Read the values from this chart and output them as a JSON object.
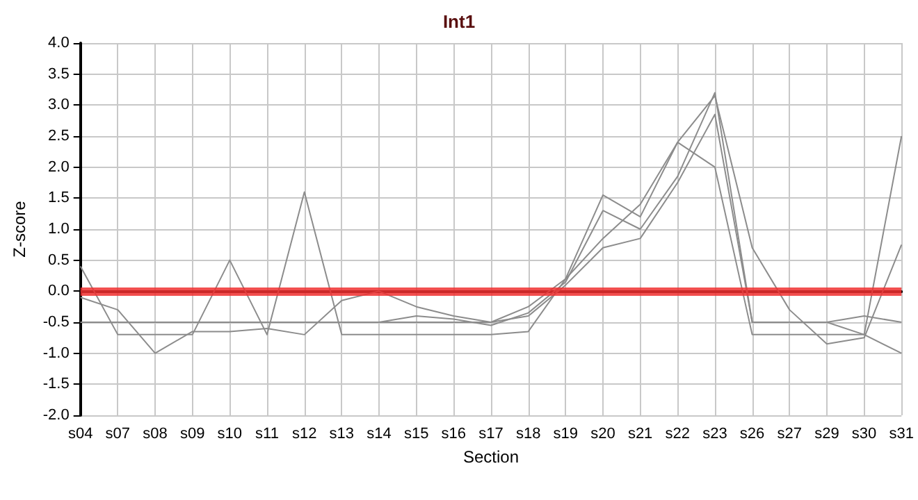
{
  "chart_data": {
    "type": "line",
    "title": "Int1",
    "xlabel": "Section",
    "ylabel": "Z-score",
    "categories": [
      "s04",
      "s07",
      "s08",
      "s09",
      "s10",
      "s11",
      "s12",
      "s13",
      "s14",
      "s15",
      "s16",
      "s17",
      "s18",
      "s19",
      "s20",
      "s21",
      "s22",
      "s23",
      "s26",
      "s27",
      "s29",
      "s30",
      "s31"
    ],
    "series": [
      {
        "color": "#8c8c8c",
        "values": [
          0.4,
          -0.7,
          -0.7,
          -0.7,
          0.5,
          -0.7,
          1.6,
          -0.7,
          -0.7,
          -0.7,
          -0.7,
          -0.7,
          -0.65,
          0.2,
          1.55,
          1.2,
          2.4,
          2.0,
          -0.7,
          -0.7,
          -0.7,
          -0.7,
          2.5
        ]
      },
      {
        "color": "#8c8c8c",
        "values": [
          -0.5,
          -0.5,
          -0.5,
          -0.5,
          -0.5,
          -0.5,
          -0.5,
          -0.5,
          -0.5,
          -0.5,
          -0.5,
          -0.5,
          -0.4,
          0.1,
          0.7,
          0.85,
          1.75,
          2.85,
          -0.5,
          -0.5,
          -0.5,
          -0.4,
          -0.5
        ]
      },
      {
        "color": "#8c8c8c",
        "values": [
          -0.1,
          -0.3,
          -1.0,
          -0.65,
          -0.65,
          -0.6,
          -0.7,
          -0.15,
          0.0,
          -0.25,
          -0.4,
          -0.5,
          -0.25,
          0.2,
          0.85,
          1.4,
          2.4,
          3.15,
          0.7,
          -0.3,
          -0.85,
          -0.75,
          0.75
        ]
      },
      {
        "color": "#8c8c8c",
        "values": [
          -0.5,
          -0.5,
          -0.5,
          -0.5,
          -0.5,
          -0.5,
          -0.5,
          -0.5,
          -0.5,
          -0.4,
          -0.45,
          -0.55,
          -0.35,
          0.15,
          1.3,
          1.0,
          1.85,
          3.2,
          -0.5,
          -0.5,
          -0.5,
          -0.7,
          -1.0
        ]
      }
    ],
    "ylim": [
      -2,
      4
    ],
    "yticks": [
      {
        "value": -2,
        "label": "-2.0"
      },
      {
        "value": -1.5,
        "label": "-1.5"
      },
      {
        "value": -1,
        "label": "-1.0"
      },
      {
        "value": -0.5,
        "label": "-0.5"
      },
      {
        "value": 0,
        "label": "0.0"
      },
      {
        "value": 0.5,
        "label": "0.5"
      },
      {
        "value": 1,
        "label": "1.0"
      },
      {
        "value": 1.5,
        "label": "1.5"
      },
      {
        "value": 2,
        "label": "2.0"
      },
      {
        "value": 2.5,
        "label": "2.5"
      },
      {
        "value": 3,
        "label": "3.0"
      },
      {
        "value": 3.5,
        "label": "3.5"
      },
      {
        "value": 4,
        "label": "4.0"
      }
    ],
    "ref_lines": [
      {
        "axis": "y",
        "value": 0,
        "color": "#f03030"
      }
    ],
    "grid": true,
    "marker": "none",
    "line_style": "solid"
  }
}
